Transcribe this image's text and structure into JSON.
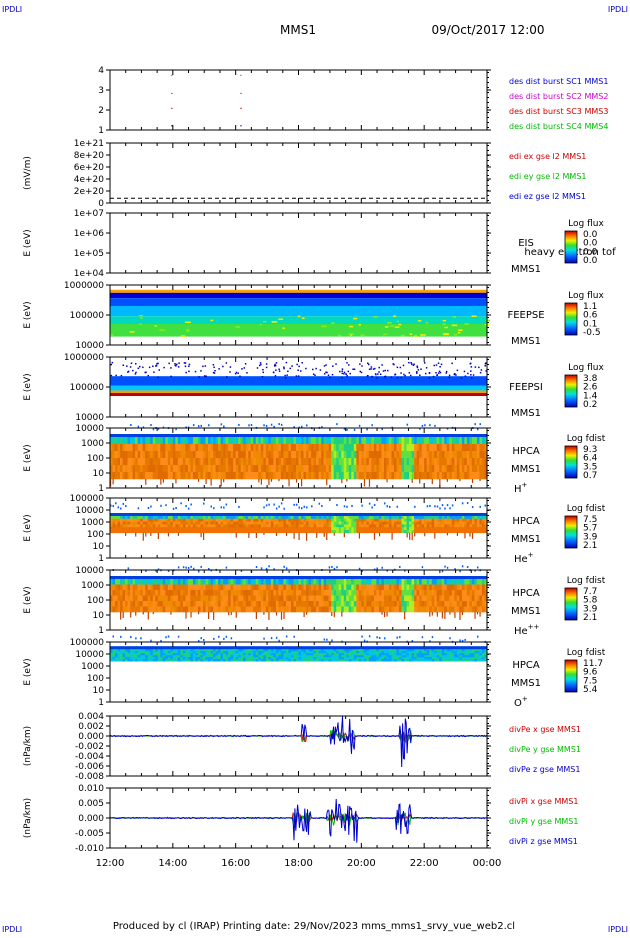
{
  "header": {
    "corner_tl": "IPDLI",
    "corner_tr": "IPDLI",
    "corner_bl": "IPDLI",
    "corner_br": "IPDLI",
    "spacecraft": "MMS1",
    "datetime": "09/Oct/2017 12:00"
  },
  "footer": {
    "text": "Produced by cl (IRAP)   Printing date: 29/Nov/2023   mms_mms1_srvy_vue_web2.cl"
  },
  "colors": {
    "blue": "#0000cc",
    "magenta": "#cc00cc",
    "red": "#cc0000",
    "green": "#00bb00"
  },
  "chart_data": {
    "type": "stacked_timeseries",
    "x_ticks": [
      "12:00",
      "14:00",
      "16:00",
      "18:00",
      "20:00",
      "22:00",
      "00:00"
    ],
    "x_range_hours": [
      12,
      24
    ],
    "panels": [
      {
        "id": "burst",
        "type": "scatter",
        "y_ticks": [
          "4",
          "3",
          "2",
          "1"
        ],
        "ylabel": "",
        "legend": [
          {
            "text": "des dist burst SC1 MMS1",
            "color": "blue"
          },
          {
            "text": "des dist burst SC2 MMS2",
            "color": "magenta"
          },
          {
            "text": "des dist burst SC3 MMS3",
            "color": "red"
          },
          {
            "text": "des dist burst SC4 MMS4",
            "color": "green"
          }
        ]
      },
      {
        "id": "edi",
        "type": "line",
        "y_ticks": [
          "1e+21",
          "8e+20",
          "6e+20",
          "4e+20",
          "2e+20",
          "0"
        ],
        "ylabel": "(mV/m)",
        "legend": [
          {
            "text": "edi ex gse l2 MMS1",
            "color": "red"
          },
          {
            "text": "edi ey gse l2 MMS1",
            "color": "green"
          },
          {
            "text": "edi ez gse l2 MMS1",
            "color": "blue"
          }
        ]
      },
      {
        "id": "eis",
        "type": "heatmap",
        "y_ticks": [
          "1e+07",
          "1e+06",
          "1e+05",
          "1e+04"
        ],
        "ylabel": "E (eV)",
        "instrument": [
          "EIS",
          "MMS1"
        ],
        "extra": "heavy electron tof",
        "cbar_title": "Log flux",
        "cbar_ticks": [
          "0.0",
          "0.0",
          "0.0",
          "0.0"
        ]
      },
      {
        "id": "feepse",
        "type": "heatmap",
        "y_ticks": [
          "1000000",
          "100000",
          "10000"
        ],
        "ylabel": "E (eV)",
        "instrument": [
          "FEEPSE",
          "MMS1"
        ],
        "cbar_title": "Log flux",
        "cbar_ticks": [
          "1.1",
          "0.6",
          "0.1",
          "-0.5"
        ]
      },
      {
        "id": "feepsi",
        "type": "heatmap",
        "y_ticks": [
          "1000000",
          "100000",
          "10000"
        ],
        "ylabel": "E (eV)",
        "instrument": [
          "FEEPSI",
          "MMS1"
        ],
        "cbar_title": "Log flux",
        "cbar_ticks": [
          "3.8",
          "2.6",
          "1.4",
          "0.2"
        ]
      },
      {
        "id": "hpca_h",
        "type": "heatmap",
        "y_ticks": [
          "10000",
          "1000",
          "100",
          "10",
          "1"
        ],
        "ylabel": "E (eV)",
        "instrument": [
          "HPCA",
          "MMS1"
        ],
        "species": "H",
        "species_sup": "+",
        "cbar_title": "Log fdist",
        "cbar_ticks": [
          "9.3",
          "6.4",
          "3.5",
          "0.7"
        ]
      },
      {
        "id": "hpca_he",
        "type": "heatmap",
        "y_ticks": [
          "100000",
          "10000",
          "1000",
          "100",
          "10",
          "1"
        ],
        "ylabel": "E (eV)",
        "instrument": [
          "HPCA",
          "MMS1"
        ],
        "species": "He",
        "species_sup": "+",
        "cbar_title": "Log fdist",
        "cbar_ticks": [
          "7.5",
          "5.7",
          "3.9",
          "2.1"
        ]
      },
      {
        "id": "hpca_hepp",
        "type": "heatmap",
        "y_ticks": [
          "10000",
          "1000",
          "100",
          "10",
          "1"
        ],
        "ylabel": "E (eV)",
        "instrument": [
          "HPCA",
          "MMS1"
        ],
        "species": "He",
        "species_sup": "++",
        "cbar_title": "Log fdist",
        "cbar_ticks": [
          "7.7",
          "5.8",
          "3.9",
          "2.1"
        ]
      },
      {
        "id": "hpca_o",
        "type": "heatmap",
        "y_ticks": [
          "100000",
          "10000",
          "1000",
          "100",
          "10",
          "1"
        ],
        "ylabel": "E (eV)",
        "instrument": [
          "HPCA",
          "MMS1"
        ],
        "species": "O",
        "species_sup": "+",
        "cbar_title": "Log fdist",
        "cbar_ticks": [
          "11.7",
          "9.6",
          "7.5",
          "5.4"
        ]
      },
      {
        "id": "divpe",
        "type": "line",
        "y_ticks": [
          "0.004",
          "0.002",
          "0.000",
          "-0.002",
          "-0.004",
          "-0.006",
          "-0.008"
        ],
        "ylabel": "(nPa/km)",
        "legend": [
          {
            "text": "divPe x gse MMS1",
            "color": "red"
          },
          {
            "text": "divPe y gse MMS1",
            "color": "green"
          },
          {
            "text": "divPe z gse MMS1",
            "color": "blue"
          }
        ]
      },
      {
        "id": "divpi",
        "type": "line",
        "y_ticks": [
          "0.010",
          "0.005",
          "0.000",
          "-0.005",
          "-0.010"
        ],
        "ylabel": "(nPa/km)",
        "legend": [
          {
            "text": "divPi x gse MMS1",
            "color": "red"
          },
          {
            "text": "divPi y gse MMS1",
            "color": "green"
          },
          {
            "text": "divPi z gse MMS1",
            "color": "blue"
          }
        ]
      }
    ]
  }
}
